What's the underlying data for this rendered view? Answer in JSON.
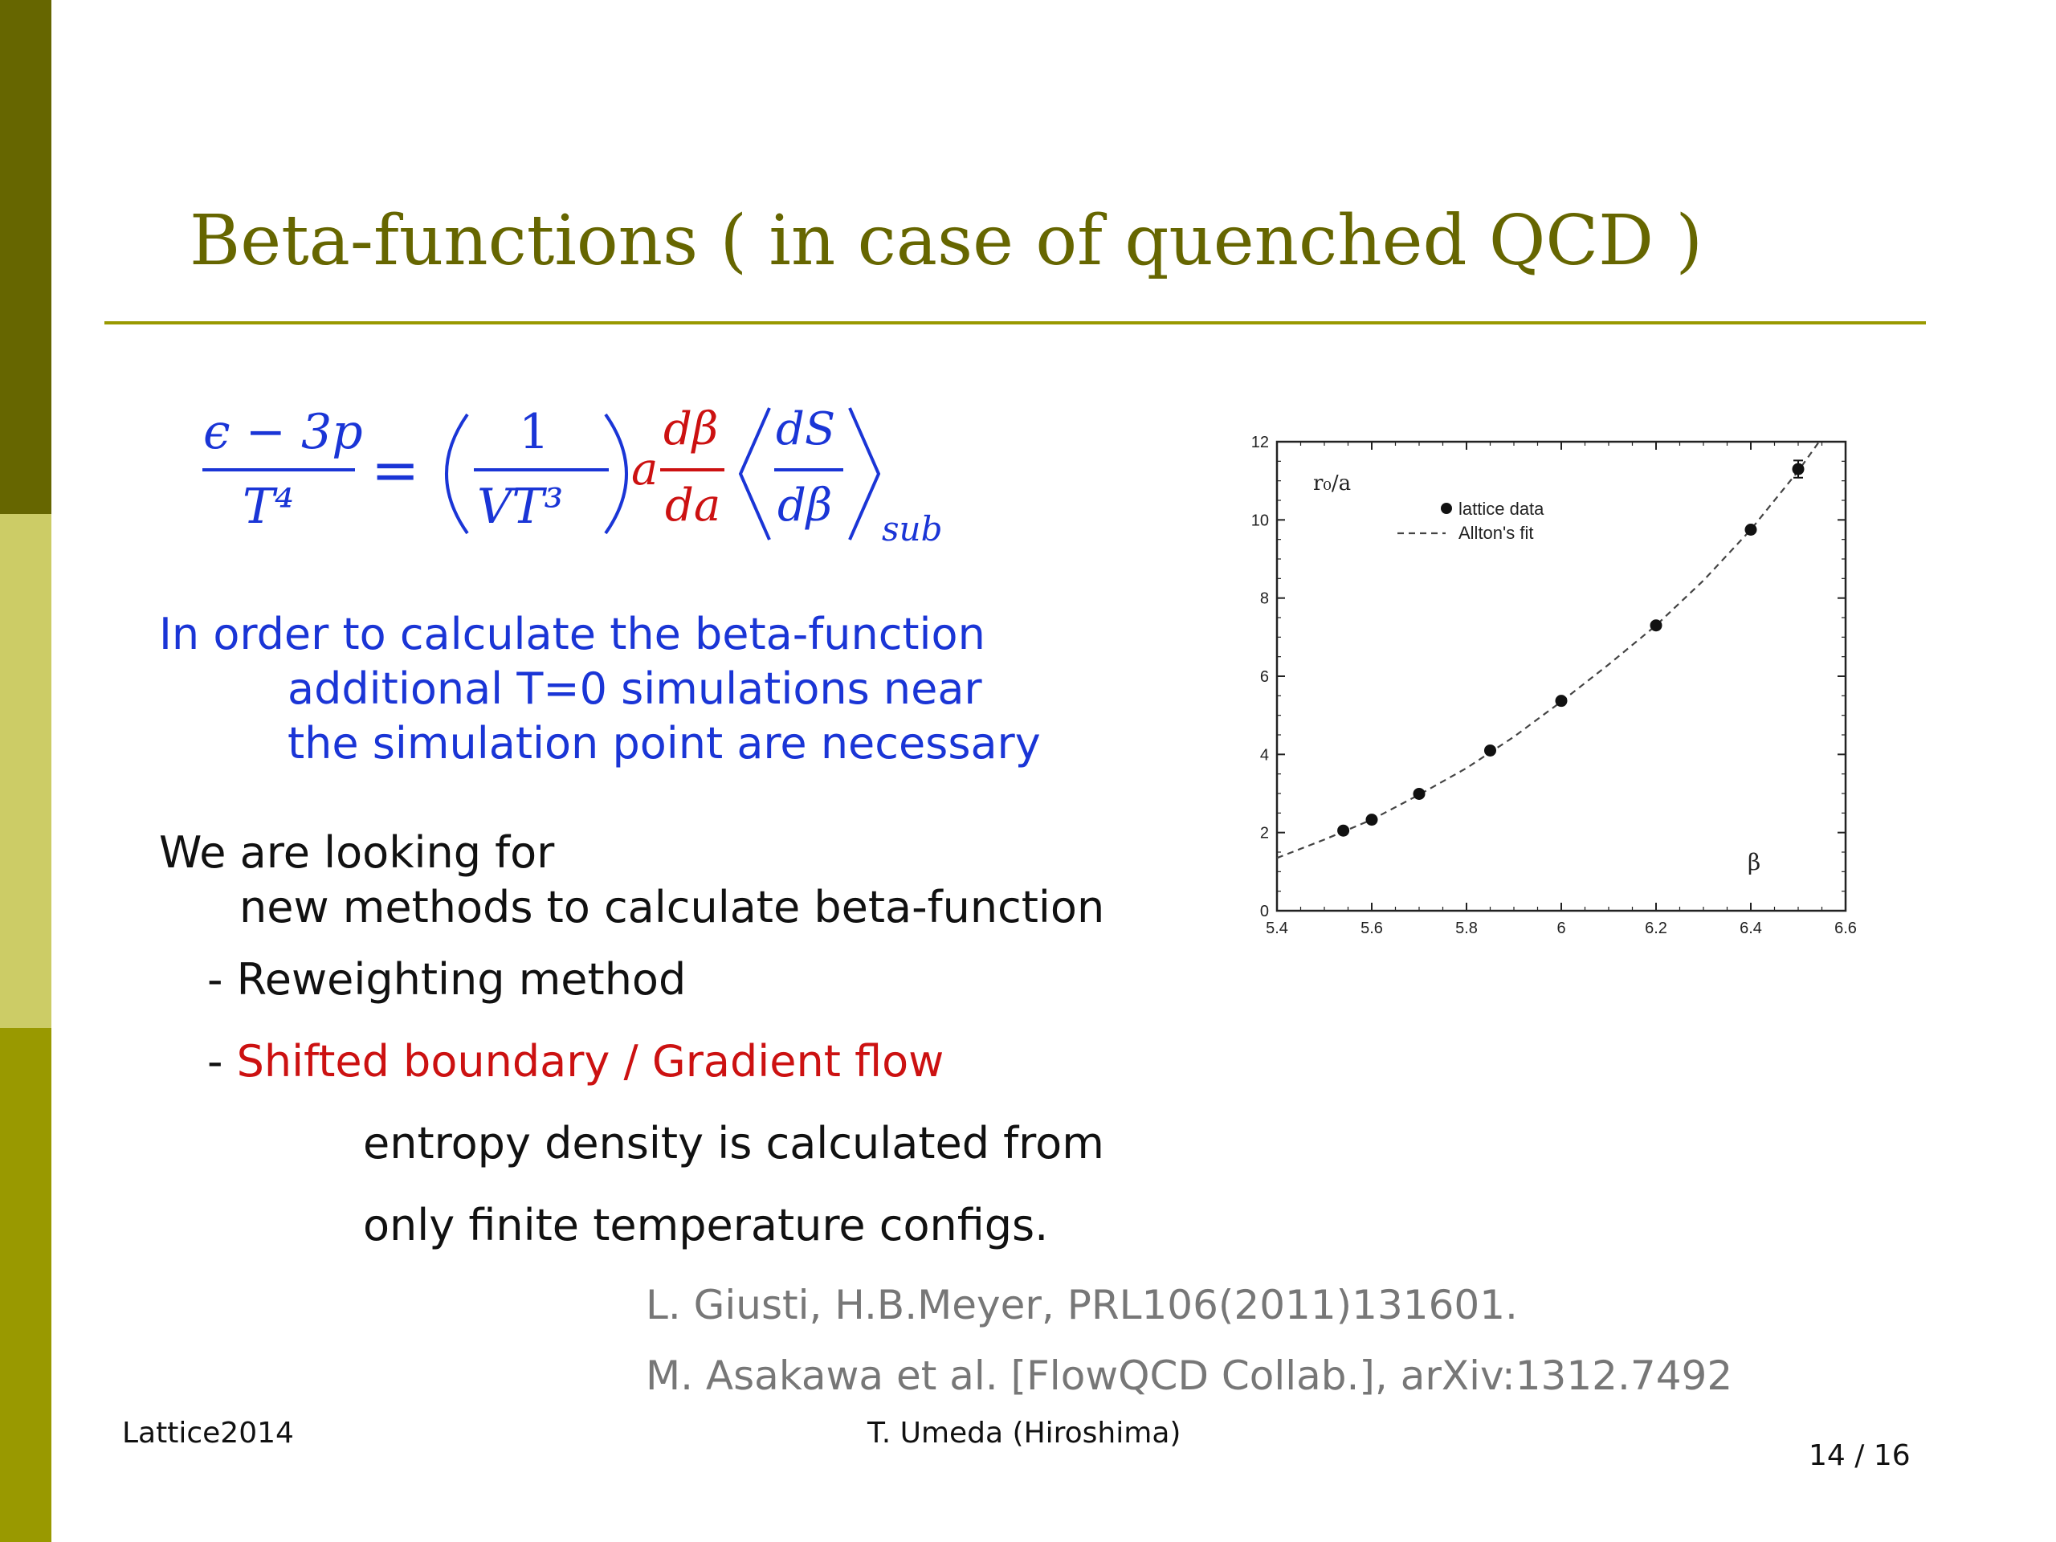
{
  "slide": {
    "title": "Beta-functions ( in case of quenched QCD )",
    "formula": {
      "lhs_num": "ϵ − 3p",
      "lhs_den": "T⁴",
      "eq": "=",
      "one": "1",
      "vt3": "VT³",
      "a": "a",
      "dbeta": "dβ",
      "da": "da",
      "ds": "dS",
      "dbeta2": "dβ",
      "sub": "sub"
    },
    "para1": [
      "In order to calculate the beta-function",
      "additional T=0 simulations near",
      "the simulation point are necessary"
    ],
    "para2": [
      "We are looking for",
      "new methods to calculate beta-function"
    ],
    "bullet1": "- Reweighting method",
    "bullet2_dash": "- ",
    "bullet2": "Shifted boundary / Gradient flow",
    "detail": [
      "entropy density is calculated from",
      "only finite temperature configs."
    ],
    "refs": [
      "L. Giusti, H.B.Meyer, PRL106(2011)131601.",
      "M. Asakawa et al. [FlowQCD Collab.], arXiv:1312.7492"
    ],
    "footer": {
      "left": "Lattice2014",
      "center": "T. Umeda (Hiroshima)",
      "page": "14 / 16"
    },
    "colors": {
      "sidebar_dark": "#666600",
      "sidebar_light": "#cccc66",
      "sidebar_mid": "#999900",
      "title": "#666600",
      "blue": "#1a35d6",
      "red": "#cc1111"
    }
  },
  "chart_data": {
    "type": "scatter",
    "ylabel": "r₀/a",
    "xlabel": "β",
    "xlim": [
      5.4,
      6.6
    ],
    "ylim": [
      0,
      12
    ],
    "xticks": [
      5.4,
      5.6,
      5.8,
      6,
      6.2,
      6.4,
      6.6
    ],
    "xtick_labels": [
      "5.4",
      "5.6",
      "5.8",
      "6",
      "6.2",
      "6.4",
      "6.6"
    ],
    "yticks": [
      0,
      2,
      4,
      6,
      8,
      10,
      12
    ],
    "ytick_labels": [
      "0",
      "2",
      "4",
      "6",
      "8",
      "10",
      "12"
    ],
    "legend_placement": "top-left",
    "series": [
      {
        "name": "lattice data",
        "style": "points",
        "x": [
          5.54,
          5.6,
          5.7,
          5.85,
          6.0,
          6.2,
          6.4,
          6.5
        ],
        "y": [
          2.05,
          2.33,
          2.99,
          4.1,
          5.37,
          7.3,
          9.75,
          11.3
        ],
        "yerr": [
          0.03,
          0.03,
          0.04,
          0.05,
          0.06,
          0.1,
          0.12,
          0.22
        ]
      },
      {
        "name": "Allton's fit",
        "style": "dashed",
        "x": [
          5.4,
          5.5,
          5.6,
          5.7,
          5.8,
          5.9,
          6.0,
          6.1,
          6.2,
          6.3,
          6.4,
          6.5,
          6.55
        ],
        "y": [
          1.35,
          1.82,
          2.33,
          2.97,
          3.65,
          4.45,
          5.35,
          6.3,
          7.3,
          8.45,
          9.75,
          11.25,
          12.1
        ]
      }
    ]
  }
}
